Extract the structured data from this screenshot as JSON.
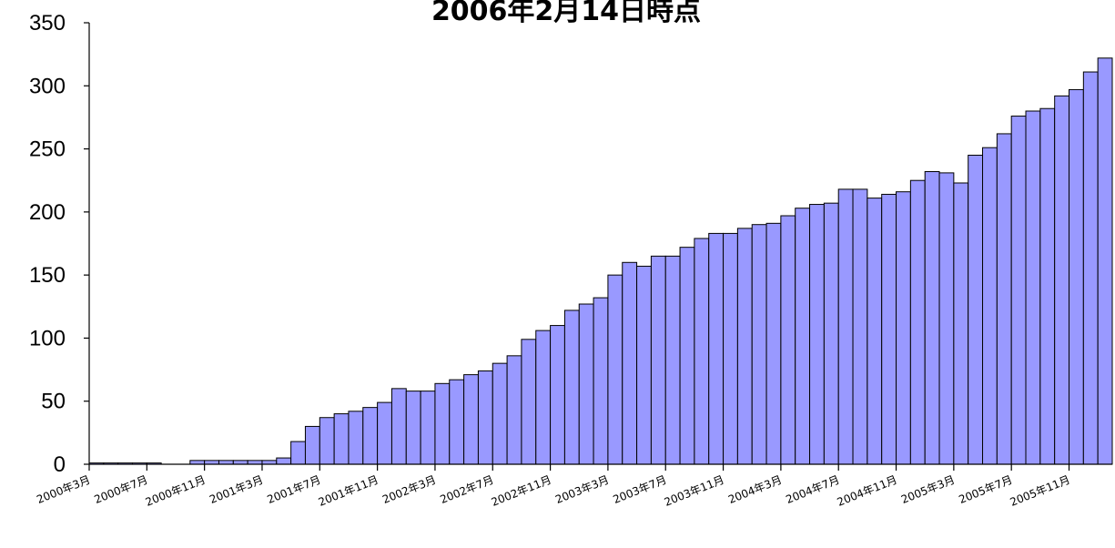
{
  "chart_data": {
    "type": "bar",
    "title": "2006年2月14日時点",
    "xlabel": "",
    "ylabel": "",
    "ylim": [
      0,
      350
    ],
    "yticks": [
      0,
      50,
      100,
      150,
      200,
      250,
      300,
      350
    ],
    "grid": false,
    "legend": "none",
    "bar_color": "#9999ff",
    "bar_edge_color": "#000000",
    "x_tick_labels": [
      {
        "index": 0,
        "label": "2000年3月"
      },
      {
        "index": 4,
        "label": "2000年7月"
      },
      {
        "index": 8,
        "label": "2000年11月"
      },
      {
        "index": 12,
        "label": "2001年3月"
      },
      {
        "index": 16,
        "label": "2001年7月"
      },
      {
        "index": 20,
        "label": "2001年11月"
      },
      {
        "index": 24,
        "label": "2002年3月"
      },
      {
        "index": 28,
        "label": "2002年7月"
      },
      {
        "index": 32,
        "label": "2002年11月"
      },
      {
        "index": 36,
        "label": "2003年3月"
      },
      {
        "index": 40,
        "label": "2003年7月"
      },
      {
        "index": 44,
        "label": "2003年11月"
      },
      {
        "index": 48,
        "label": "2004年3月"
      },
      {
        "index": 52,
        "label": "2004年7月"
      },
      {
        "index": 56,
        "label": "2004年11月"
      },
      {
        "index": 60,
        "label": "2005年3月"
      },
      {
        "index": 64,
        "label": "2005年7月"
      },
      {
        "index": 68,
        "label": "2005年11月"
      }
    ],
    "values": [
      1,
      1,
      1,
      1,
      1,
      0,
      0,
      3,
      3,
      3,
      3,
      3,
      3,
      5,
      18,
      30,
      37,
      40,
      42,
      45,
      49,
      60,
      58,
      58,
      64,
      67,
      71,
      74,
      80,
      86,
      99,
      106,
      110,
      122,
      127,
      132,
      150,
      160,
      157,
      165,
      165,
      172,
      179,
      183,
      183,
      187,
      190,
      191,
      197,
      203,
      206,
      207,
      218,
      218,
      211,
      214,
      216,
      225,
      232,
      231,
      223,
      245,
      251,
      262,
      276,
      280,
      282,
      292,
      297,
      311,
      322
    ]
  }
}
